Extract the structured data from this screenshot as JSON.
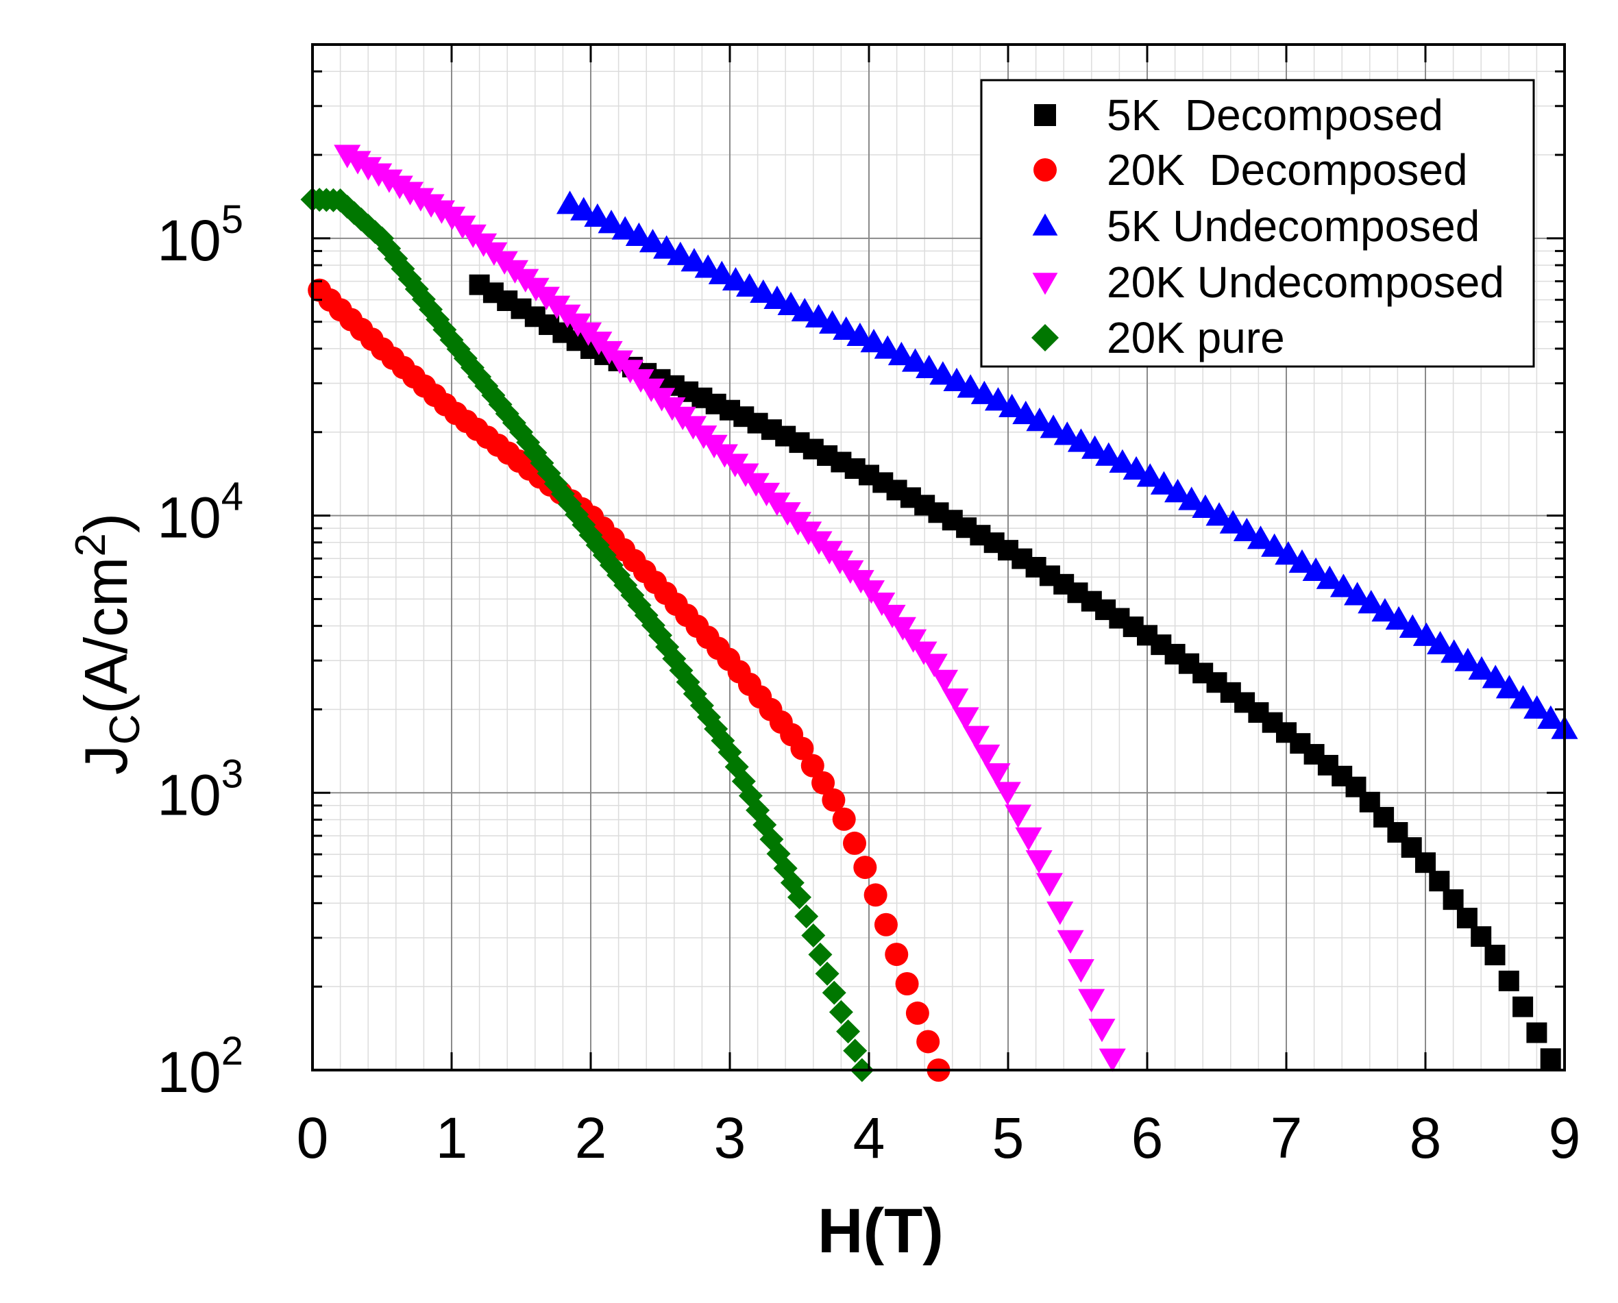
{
  "chart_data": {
    "type": "scatter",
    "title": "",
    "xlabel": "H(T)",
    "ylabel": {
      "main": "J",
      "sub": "C",
      "unit": "(A/cm",
      "sup": "2",
      "close": ")"
    },
    "xlim": [
      0,
      9
    ],
    "ylim": [
      100,
      500000
    ],
    "yscale": "log",
    "grid": true,
    "legend_position": "top-right",
    "x_ticks": [
      "0",
      "1",
      "2",
      "3",
      "4",
      "5",
      "6",
      "7",
      "8",
      "9"
    ],
    "y_ticks": [
      {
        "base": "10",
        "exp": "2"
      },
      {
        "base": "10",
        "exp": "3"
      },
      {
        "base": "10",
        "exp": "4"
      },
      {
        "base": "10",
        "exp": "5"
      }
    ],
    "series": [
      {
        "name": "5K  Decomposed",
        "marker": "square",
        "color": "#000000",
        "x": [
          1.2,
          2.0,
          3.0,
          4.0,
          5.0,
          6.0,
          6.5,
          7.0,
          7.5,
          8.0,
          8.5,
          8.9
        ],
        "y": [
          68000,
          40000,
          24000,
          14000,
          7500,
          3700,
          2500,
          1650,
          1050,
          560,
          260,
          110
        ]
      },
      {
        "name": "20K  Decomposed",
        "marker": "circle",
        "color": "#ff0000",
        "x": [
          0.05,
          0.5,
          1.0,
          2.0,
          2.5,
          3.0,
          3.5,
          3.8,
          4.0,
          4.2,
          4.35,
          4.5
        ],
        "y": [
          65000,
          40000,
          24000,
          10000,
          5500,
          3000,
          1500,
          850,
          500,
          260,
          160,
          100
        ]
      },
      {
        "name": "5K Undecomposed",
        "marker": "triangle-up",
        "color": "#0000ff",
        "x": [
          1.85,
          3.0,
          4.0,
          5.0,
          6.0,
          7.0,
          8.0,
          8.5,
          9.0
        ],
        "y": [
          133000,
          72000,
          43000,
          25000,
          14000,
          7300,
          3700,
          2600,
          1700
        ]
      },
      {
        "name": "20K Undecomposed",
        "marker": "triangle-down",
        "color": "#ff00ff",
        "x": [
          0.25,
          1.0,
          2.0,
          3.0,
          4.0,
          4.5,
          5.0,
          5.3,
          5.5,
          5.75
        ],
        "y": [
          200000,
          120000,
          45000,
          16000,
          5500,
          2800,
          1000,
          470,
          250,
          110
        ]
      },
      {
        "name": "20K pure",
        "marker": "diamond",
        "color": "#007700",
        "x": [
          0.0,
          0.2,
          0.5,
          1.0,
          1.5,
          2.0,
          2.5,
          3.0,
          3.5,
          3.75,
          3.95
        ],
        "y": [
          138000,
          137000,
          100000,
          43000,
          20000,
          8500,
          3700,
          1400,
          420,
          190,
          100
        ]
      }
    ]
  }
}
